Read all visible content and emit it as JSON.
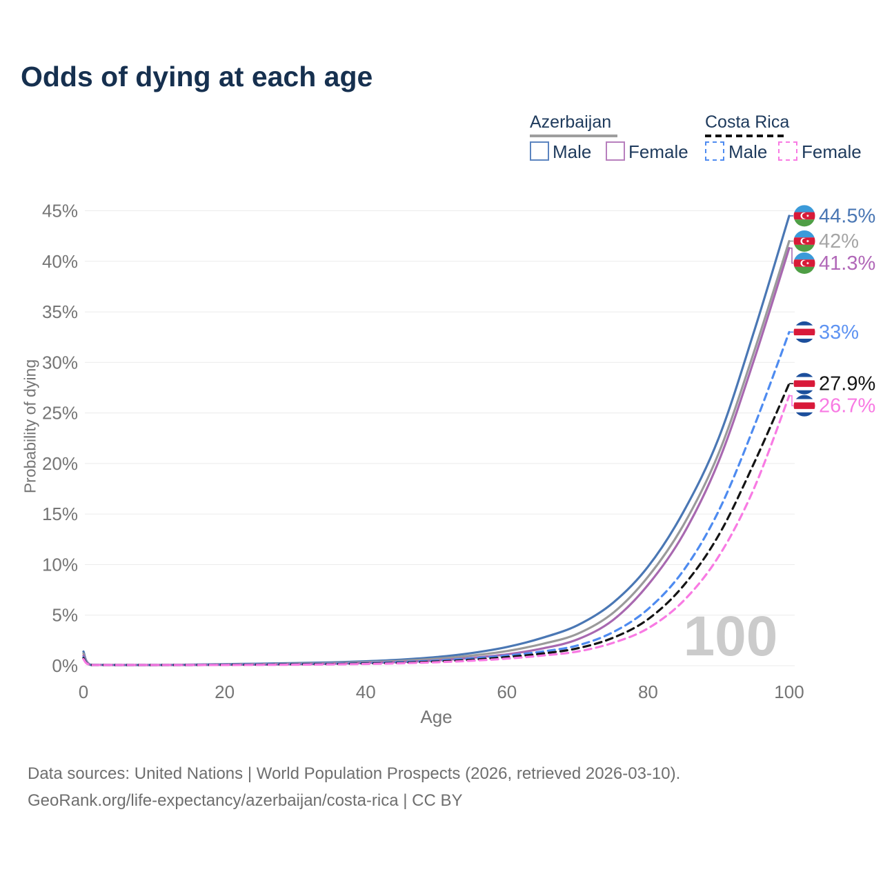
{
  "title": "Odds of dying at each age",
  "legend": {
    "groups": [
      {
        "country": "Azerbaijan",
        "line_style": "solid",
        "underline_color": "#9e9e9e",
        "items": [
          {
            "label": "Male",
            "color": "#5b84bf"
          },
          {
            "label": "Female",
            "color": "#b77fbd"
          }
        ]
      },
      {
        "country": "Costa Rica",
        "line_style": "dashed",
        "underline_color": "#111111",
        "items": [
          {
            "label": "Male",
            "color": "#4e8bf0"
          },
          {
            "label": "Female",
            "color": "#f87ae3"
          }
        ]
      }
    ]
  },
  "flags": {
    "azerbaijan": {
      "blue": "#3b9ad9",
      "red": "#d81a38",
      "green": "#4f9e45",
      "crescent": "#ffffff"
    },
    "costa_rica": {
      "blue": "#1c4f9c",
      "white": "#ffffff",
      "red": "#d81939"
    }
  },
  "chart_data": {
    "type": "line",
    "title": "Odds of dying at each age",
    "xlabel": "Age",
    "ylabel": "Probability of dying",
    "xlim": [
      0,
      100
    ],
    "ylim": [
      0,
      45
    ],
    "x_ticks": [
      0,
      20,
      40,
      60,
      80,
      100
    ],
    "y_ticks": [
      0,
      5,
      10,
      15,
      20,
      25,
      30,
      35,
      40,
      45
    ],
    "y_tick_suffix": "%",
    "grid": true,
    "legend_position": "top-right",
    "watermark": "100",
    "x": [
      0,
      1,
      5,
      10,
      15,
      20,
      25,
      30,
      35,
      40,
      45,
      50,
      55,
      60,
      65,
      70,
      75,
      80,
      85,
      90,
      95,
      100
    ],
    "series": [
      {
        "name": "Azerbaijan Male",
        "flag": "az",
        "color": "#4a77b4",
        "label_color": "#4a77b4",
        "dashed": false,
        "end_label": "44.5%",
        "values": [
          1.4,
          0.1,
          0.06,
          0.06,
          0.1,
          0.16,
          0.2,
          0.26,
          0.33,
          0.44,
          0.6,
          0.85,
          1.25,
          1.85,
          2.75,
          4.0,
          6.2,
          9.8,
          15.2,
          22.5,
          33.0,
          44.5
        ]
      },
      {
        "name": "Azerbaijan Both sexes",
        "flag": "az",
        "color": "#9a9a9a",
        "label_color": "#a5a5a5",
        "dashed": false,
        "end_label": "42%",
        "values": [
          1.2,
          0.09,
          0.05,
          0.05,
          0.08,
          0.12,
          0.16,
          0.2,
          0.26,
          0.35,
          0.48,
          0.68,
          1.0,
          1.45,
          2.15,
          3.15,
          5.2,
          8.8,
          13.9,
          21.0,
          31.0,
          42.0
        ]
      },
      {
        "name": "Azerbaijan Female",
        "flag": "az",
        "color": "#a868b0",
        "label_color": "#b168b8",
        "dashed": false,
        "end_label": "41.3%",
        "values": [
          1.0,
          0.08,
          0.04,
          0.04,
          0.07,
          0.09,
          0.11,
          0.14,
          0.19,
          0.27,
          0.37,
          0.52,
          0.78,
          1.12,
          1.7,
          2.6,
          4.5,
          8.0,
          13.0,
          20.2,
          30.2,
          41.3
        ]
      },
      {
        "name": "Costa Rica Male",
        "flag": "cr",
        "color": "#4e8bf0",
        "label_color": "#5e93f2",
        "dashed": true,
        "end_label": "33%",
        "values": [
          0.85,
          0.07,
          0.03,
          0.03,
          0.07,
          0.1,
          0.13,
          0.16,
          0.2,
          0.26,
          0.36,
          0.5,
          0.72,
          1.0,
          1.4,
          2.0,
          3.3,
          5.6,
          9.4,
          15.3,
          23.6,
          33.0
        ]
      },
      {
        "name": "Costa Rica Both sexes",
        "flag": "cr",
        "color": "#141414",
        "label_color": "#141414",
        "dashed": true,
        "end_label": "27.9%",
        "values": [
          0.75,
          0.06,
          0.03,
          0.03,
          0.06,
          0.08,
          0.1,
          0.13,
          0.16,
          0.21,
          0.29,
          0.41,
          0.59,
          0.85,
          1.2,
          1.72,
          2.75,
          4.6,
          7.9,
          12.9,
          20.0,
          27.9
        ]
      },
      {
        "name": "Costa Rica Female",
        "flag": "cr",
        "color": "#f87ae3",
        "label_color": "#f87ae3",
        "dashed": true,
        "end_label": "26.7%",
        "values": [
          0.65,
          0.05,
          0.02,
          0.02,
          0.04,
          0.06,
          0.08,
          0.1,
          0.13,
          0.17,
          0.24,
          0.34,
          0.49,
          0.7,
          1.0,
          1.4,
          2.25,
          3.7,
          6.4,
          10.8,
          17.5,
          26.7
        ]
      }
    ]
  },
  "footer": {
    "line1": "Data sources: United Nations | World Population Prospects (2026, retrieved 2026-03-10).",
    "line2": "GeoRank.org/life-expectancy/azerbaijan/costa-rica | CC BY"
  }
}
